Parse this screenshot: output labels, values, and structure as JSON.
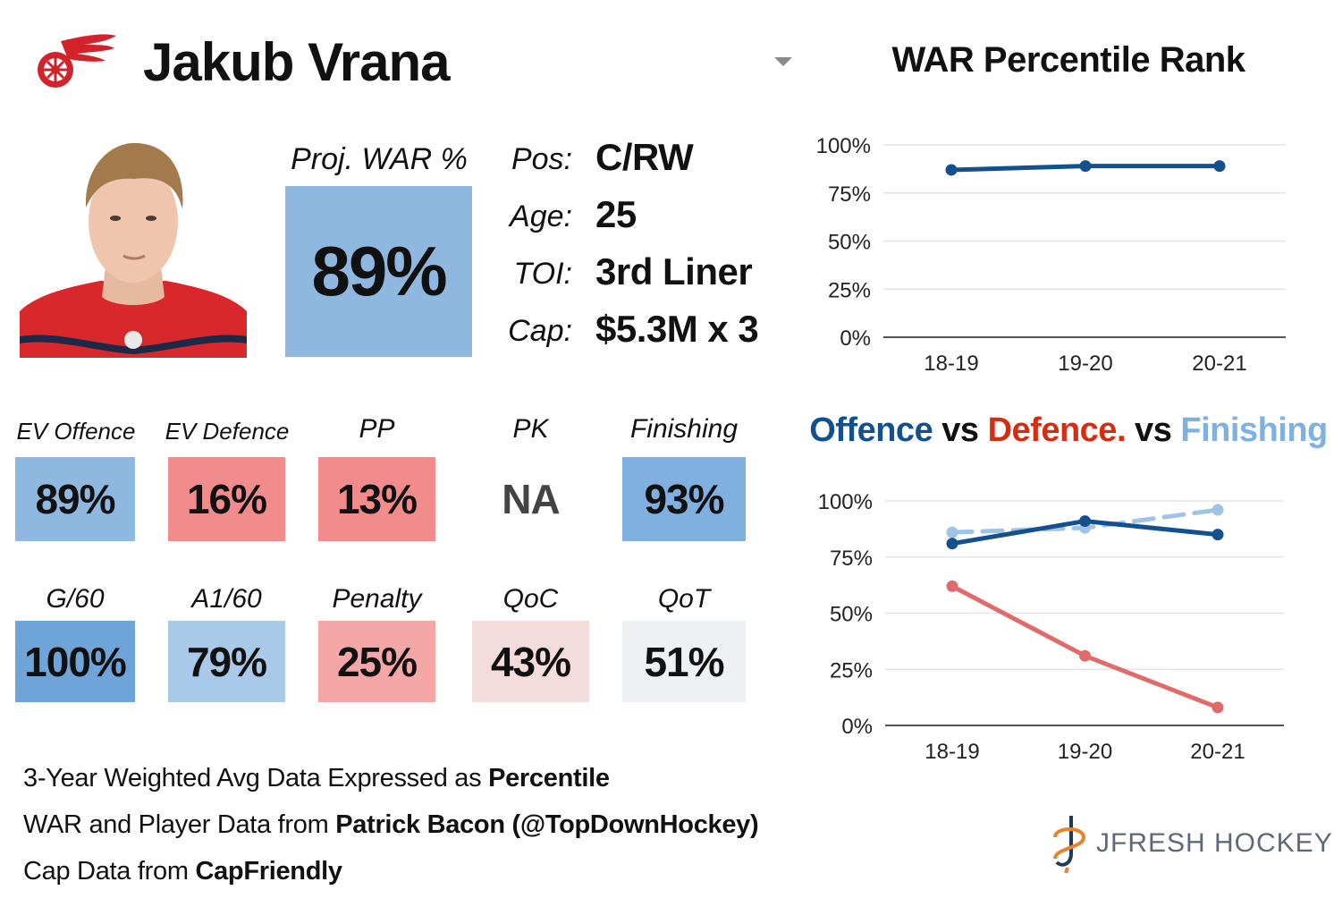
{
  "player": {
    "name": "Jakub Vrana",
    "team_logo_icon": "red-wings-wheel-icon",
    "headshot_icon": "player-headshot"
  },
  "projection": {
    "label": "Proj. WAR %",
    "value": "89%",
    "color": "#8fb8e0"
  },
  "info": [
    {
      "key": "Pos:",
      "value": "C/RW"
    },
    {
      "key": "Age:",
      "value": "25"
    },
    {
      "key": "TOI:",
      "value": "3rd Liner"
    },
    {
      "key": "Cap:",
      "value": "$5.3M x 3"
    }
  ],
  "metrics_row1": [
    {
      "label": "EV Offence",
      "value": "89%",
      "color": "#8fb8e0"
    },
    {
      "label": "EV Defence",
      "value": "16%",
      "color": "#f28b8b"
    },
    {
      "label": "PP",
      "value": "13%",
      "color": "#f28b8b"
    },
    {
      "label": "PK",
      "value": "NA",
      "color": "#ffffff"
    },
    {
      "label": "Finishing",
      "value": "93%",
      "color": "#7fb0e0"
    }
  ],
  "metrics_row2": [
    {
      "label": "G/60",
      "value": "100%",
      "color": "#6fa4d8"
    },
    {
      "label": "A1/60",
      "value": "79%",
      "color": "#a9c9e8"
    },
    {
      "label": "Penalty",
      "value": "25%",
      "color": "#f5a6a6"
    },
    {
      "label": "QoC",
      "value": "43%",
      "color": "#f5dcdc"
    },
    {
      "label": "QoT",
      "value": "51%",
      "color": "#eef0f2"
    }
  ],
  "footer": {
    "line1_prefix": "3-Year Weighted Avg Data Expressed as ",
    "line1_bold": "Percentile",
    "line2_prefix": "WAR and Player Data from ",
    "line2_bold": "Patrick Bacon (@TopDownHockey)",
    "line3_prefix": "Cap Data from ",
    "line3_bold": "CapFriendly"
  },
  "brand": {
    "name": "JFRESH HOCKEY",
    "icon": "jfresh-logo-icon"
  },
  "chart_data": [
    {
      "type": "line",
      "title": "WAR Percentile Rank",
      "x": [
        "18-19",
        "19-20",
        "20-21"
      ],
      "ylim": [
        0,
        100
      ],
      "yticks": [
        "0%",
        "25%",
        "50%",
        "75%",
        "100%"
      ],
      "grid": true,
      "series": [
        {
          "values": [
            87,
            89,
            89
          ],
          "color": "#12508e",
          "dashed": false
        }
      ]
    },
    {
      "type": "line",
      "title_parts": [
        {
          "text": "Offence",
          "color": "#12508e"
        },
        {
          "text": " vs ",
          "color": "#111111"
        },
        {
          "text": "Defence.",
          "color": "#d62d12"
        },
        {
          "text": " vs ",
          "color": "#111111"
        },
        {
          "text": "Finishing",
          "color": "#7fb0e0"
        }
      ],
      "x": [
        "18-19",
        "19-20",
        "20-21"
      ],
      "ylim": [
        0,
        100
      ],
      "yticks": [
        "0%",
        "25%",
        "50%",
        "75%",
        "100%"
      ],
      "grid": true,
      "series": [
        {
          "name": "Finishing",
          "values": [
            86,
            88,
            96
          ],
          "color": "#9fc4e6",
          "dashed": true
        },
        {
          "name": "Offence",
          "values": [
            81,
            91,
            85
          ],
          "color": "#12508e",
          "dashed": false
        },
        {
          "name": "Defence.",
          "values": [
            62,
            31,
            8
          ],
          "color": "#e06b6b",
          "dashed": false
        }
      ]
    }
  ]
}
